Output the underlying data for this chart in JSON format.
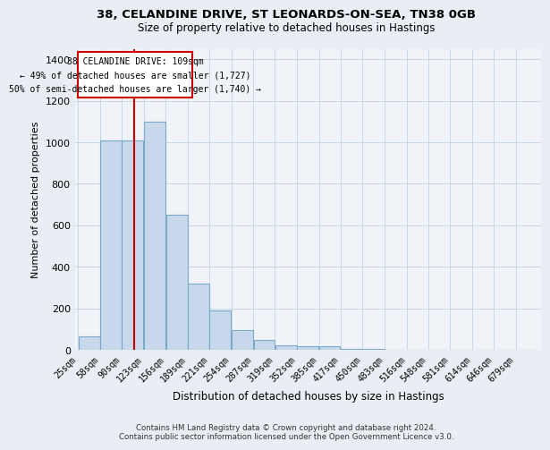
{
  "title_line1": "38, CELANDINE DRIVE, ST LEONARDS-ON-SEA, TN38 0GB",
  "title_line2": "Size of property relative to detached houses in Hastings",
  "xlabel": "Distribution of detached houses by size in Hastings",
  "ylabel": "Number of detached properties",
  "bar_color": "#c8d8ec",
  "bar_edgecolor": "#7aaac8",
  "annotation_box_text": "38 CELANDINE DRIVE: 109sqm\n← 49% of detached houses are smaller (1,727)\n50% of semi-detached houses are larger (1,740) →",
  "annotation_box_color": "#cc0000",
  "vline_x": 109,
  "vline_color": "#cc0000",
  "categories": [
    "25sqm",
    "58sqm",
    "90sqm",
    "123sqm",
    "156sqm",
    "189sqm",
    "221sqm",
    "254sqm",
    "287sqm",
    "319sqm",
    "352sqm",
    "385sqm",
    "417sqm",
    "450sqm",
    "483sqm",
    "516sqm",
    "548sqm",
    "581sqm",
    "614sqm",
    "646sqm",
    "679sqm"
  ],
  "bin_edges": [
    25,
    58,
    90,
    123,
    156,
    189,
    221,
    254,
    287,
    319,
    352,
    385,
    417,
    450,
    483,
    516,
    548,
    581,
    614,
    646,
    679,
    712
  ],
  "bar_heights": [
    65,
    1010,
    1010,
    1100,
    650,
    320,
    190,
    95,
    50,
    25,
    20,
    20,
    5,
    5,
    3,
    3,
    2,
    2,
    2,
    2,
    2
  ],
  "ylim": [
    0,
    1450
  ],
  "yticks": [
    0,
    200,
    400,
    600,
    800,
    1000,
    1200,
    1400
  ],
  "footer_line1": "Contains HM Land Registry data © Crown copyright and database right 2024.",
  "footer_line2": "Contains public sector information licensed under the Open Government Licence v3.0.",
  "bg_color": "#e8eef4",
  "plot_bg_color": "#f0f4f8"
}
